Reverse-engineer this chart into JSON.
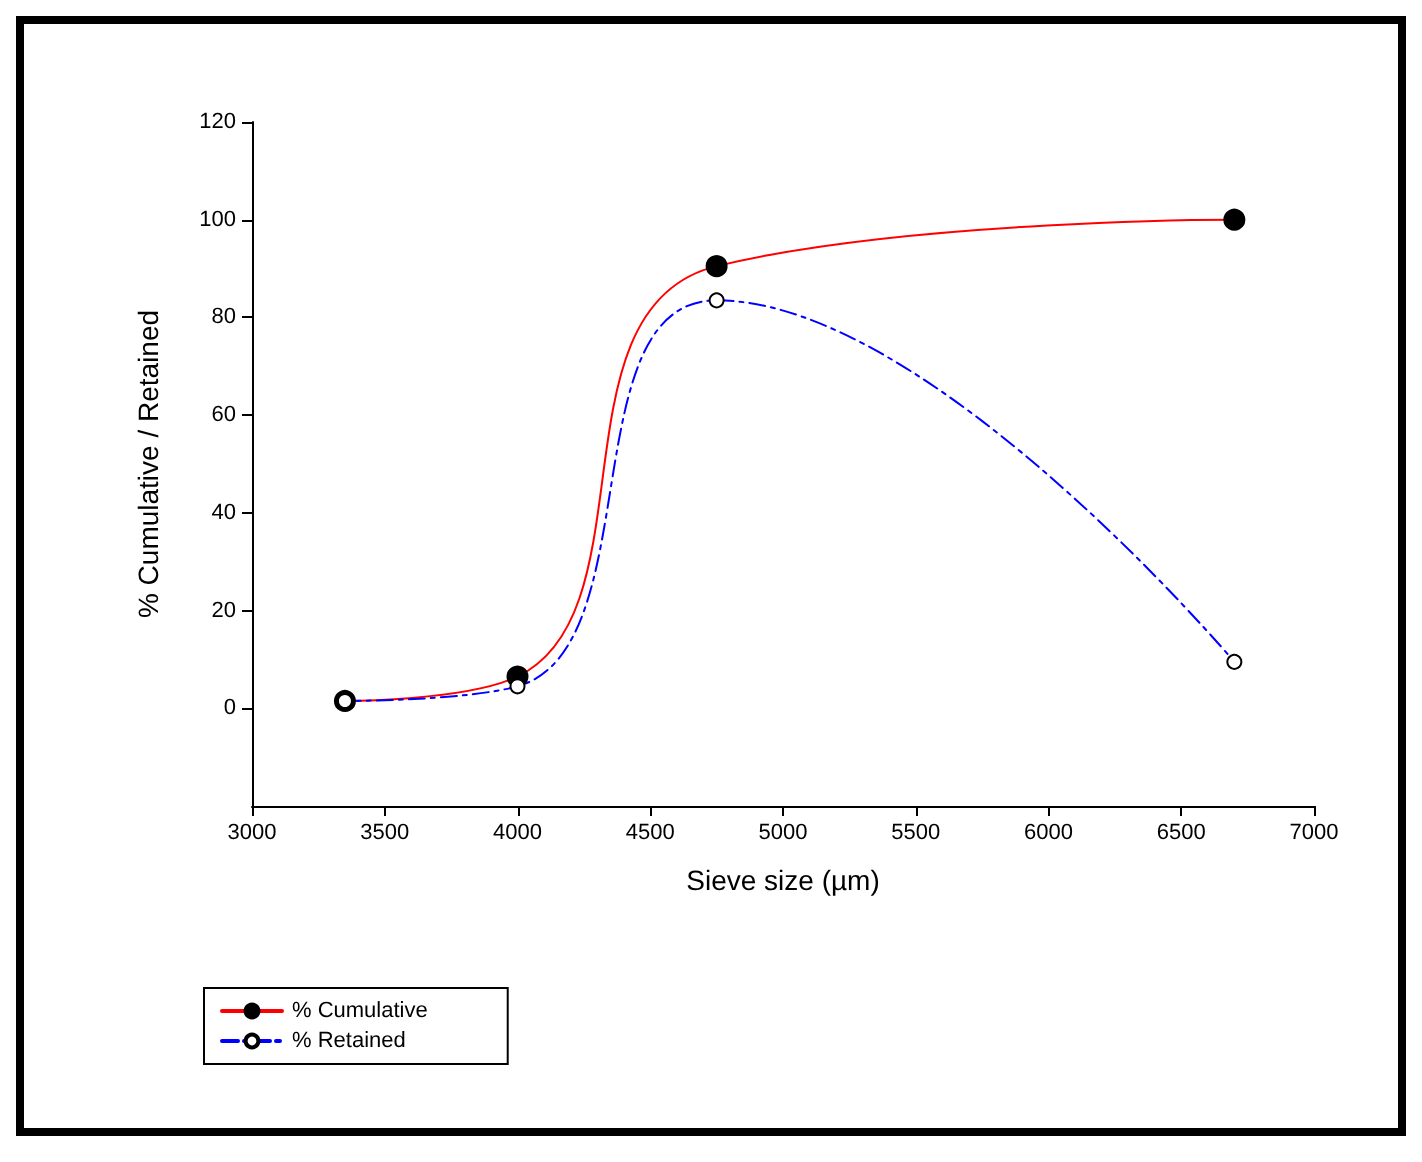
{
  "chart_data": {
    "type": "line",
    "xlabel": "Sieve size (µm)",
    "ylabel": "% Cumulative / Retained",
    "xlim": [
      3000,
      7000
    ],
    "xticks": [
      3000,
      3500,
      4000,
      4500,
      5000,
      5500,
      6000,
      6500,
      7000
    ],
    "ylim": [
      -20,
      120
    ],
    "yticks": [
      0,
      20,
      40,
      60,
      80,
      100,
      120
    ],
    "grid": false,
    "legend": "bottom left",
    "marker": "circle",
    "series": [
      {
        "name": "% Cumulative",
        "color": "#ff0000",
        "x": [
          3350,
          4000,
          4750,
          6700
        ],
        "values": [
          1.5,
          6.5,
          90.5,
          100
        ],
        "line_style": "solid"
      },
      {
        "name": "% Retained",
        "color": "#0000ff",
        "x": [
          3350,
          4000,
          4750,
          6700
        ],
        "values": [
          1.5,
          4.5,
          83.5,
          9.5
        ],
        "line_style": "dashed"
      }
    ]
  }
}
